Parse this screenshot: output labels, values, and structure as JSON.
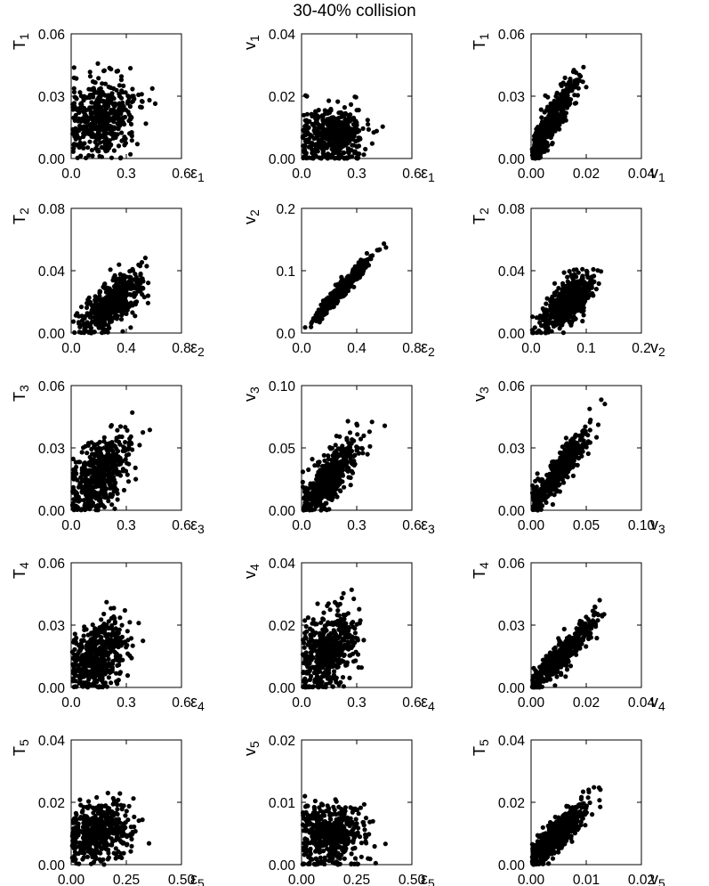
{
  "title": "30-40% collision",
  "chart_data": [
    {
      "type": "scatter",
      "xlabel": "ε1",
      "ylabel": "T1",
      "xlim": [
        0,
        0.6
      ],
      "ylim": [
        0,
        0.06
      ],
      "xticks": [
        0.0,
        0.3,
        0.6
      ],
      "xtick_labels": [
        "0.0",
        "0.3",
        "0.6"
      ],
      "yticks": [
        0.0,
        0.03,
        0.06
      ],
      "ytick_labels": [
        "0.00",
        "0.03",
        "0.06"
      ],
      "n_points": 500,
      "x_center": 0.17,
      "x_spread": 0.09,
      "slope": 0.01,
      "y0": 0.018,
      "y_noise": 0.0095,
      "seed": 11
    },
    {
      "type": "scatter",
      "xlabel": "ε1",
      "ylabel": "v1",
      "xlim": [
        0,
        0.6
      ],
      "ylim": [
        0,
        0.04
      ],
      "xticks": [
        0.0,
        0.3,
        0.6
      ],
      "xtick_labels": [
        "0.0",
        "0.3",
        "0.6"
      ],
      "yticks": [
        0.0,
        0.02,
        0.04
      ],
      "ytick_labels": [
        "0.00",
        "0.02",
        "0.04"
      ],
      "n_points": 500,
      "x_center": 0.17,
      "x_spread": 0.09,
      "slope": 0.0,
      "y0": 0.0075,
      "y_noise": 0.0045,
      "seed": 12
    },
    {
      "type": "scatter",
      "xlabel": "v1",
      "ylabel": "T1",
      "xlim": [
        0,
        0.04
      ],
      "ylim": [
        0,
        0.06
      ],
      "xticks": [
        0.0,
        0.02,
        0.04
      ],
      "xtick_labels": [
        "0.00",
        "0.02",
        "0.04"
      ],
      "yticks": [
        0.0,
        0.03,
        0.06
      ],
      "ytick_labels": [
        "0.00",
        "0.03",
        "0.06"
      ],
      "n_points": 500,
      "x_center": 0.0075,
      "x_spread": 0.0045,
      "slope": 2.1,
      "y0": 0.002,
      "y_noise": 0.0045,
      "seed": 13
    },
    {
      "type": "scatter",
      "xlabel": "ε2",
      "ylabel": "T2",
      "xlim": [
        0,
        0.8
      ],
      "ylim": [
        0,
        0.08
      ],
      "xticks": [
        0.0,
        0.4,
        0.8
      ],
      "xtick_labels": [
        "0.0",
        "0.4",
        "0.8"
      ],
      "yticks": [
        0.0,
        0.04,
        0.08
      ],
      "ytick_labels": [
        "0.00",
        "0.04",
        "0.08"
      ],
      "n_points": 500,
      "x_center": 0.3,
      "x_spread": 0.1,
      "slope": 0.06,
      "y0": 0.002,
      "y_noise": 0.007,
      "seed": 21
    },
    {
      "type": "scatter",
      "xlabel": "ε2",
      "ylabel": "v2",
      "xlim": [
        0,
        0.8
      ],
      "ylim": [
        0,
        0.2
      ],
      "xticks": [
        0.0,
        0.4,
        0.8
      ],
      "xtick_labels": [
        "0.0",
        "0.4",
        "0.8"
      ],
      "yticks": [
        0.0,
        0.1,
        0.2
      ],
      "ytick_labels": [
        "0.0",
        "0.1",
        "0.2"
      ],
      "n_points": 500,
      "x_center": 0.3,
      "x_spread": 0.1,
      "slope": 0.24,
      "y0": 0.0,
      "y_noise": 0.006,
      "seed": 22
    },
    {
      "type": "scatter",
      "xlabel": "v2",
      "ylabel": "T2",
      "xlim": [
        0,
        0.2
      ],
      "ylim": [
        0,
        0.08
      ],
      "xticks": [
        0.0,
        0.1,
        0.2
      ],
      "xtick_labels": [
        "0.0",
        "0.1",
        "0.2"
      ],
      "yticks": [
        0.0,
        0.04,
        0.08
      ],
      "ytick_labels": [
        "0.00",
        "0.04",
        "0.08"
      ],
      "n_points": 500,
      "x_center": 0.065,
      "x_spread": 0.025,
      "slope": 0.27,
      "y0": 0.002,
      "y_noise": 0.007,
      "seed": 23
    },
    {
      "type": "scatter",
      "xlabel": "ε3",
      "ylabel": "T3",
      "xlim": [
        0,
        0.6
      ],
      "ylim": [
        0,
        0.06
      ],
      "xticks": [
        0.0,
        0.3,
        0.6
      ],
      "xtick_labels": [
        "0.0",
        "0.3",
        "0.6"
      ],
      "yticks": [
        0.0,
        0.03,
        0.06
      ],
      "ytick_labels": [
        "0.00",
        "0.03",
        "0.06"
      ],
      "n_points": 500,
      "x_center": 0.15,
      "x_spread": 0.08,
      "slope": 0.065,
      "y0": 0.007,
      "y_noise": 0.008,
      "seed": 31
    },
    {
      "type": "scatter",
      "xlabel": "ε3",
      "ylabel": "v3",
      "xlim": [
        0,
        0.6
      ],
      "ylim": [
        0,
        0.1
      ],
      "xticks": [
        0.0,
        0.3,
        0.6
      ],
      "xtick_labels": [
        "0.0",
        "0.3",
        "0.6"
      ],
      "yticks": [
        0.0,
        0.05,
        0.1
      ],
      "ytick_labels": [
        "0.00",
        "0.05",
        "0.10"
      ],
      "n_points": 500,
      "x_center": 0.15,
      "x_spread": 0.08,
      "slope": 0.15,
      "y0": 0.003,
      "y_noise": 0.01,
      "seed": 32
    },
    {
      "type": "scatter",
      "xlabel": "v3",
      "ylabel": "v3",
      "xlim": [
        0,
        0.1
      ],
      "ylim": [
        0,
        0.06
      ],
      "xticks": [
        0.0,
        0.05,
        0.1
      ],
      "xtick_labels": [
        "0.00",
        "0.05",
        "0.10"
      ],
      "yticks": [
        0.0,
        0.03,
        0.06
      ],
      "ytick_labels": [
        "0.00",
        "0.03",
        "0.06"
      ],
      "n_points": 500,
      "x_center": 0.026,
      "x_spread": 0.013,
      "slope": 0.66,
      "y0": 0.002,
      "y_noise": 0.004,
      "seed": 33
    },
    {
      "type": "scatter",
      "xlabel": "ε4",
      "ylabel": "T4",
      "xlim": [
        0,
        0.6
      ],
      "ylim": [
        0,
        0.06
      ],
      "xticks": [
        0.0,
        0.3,
        0.6
      ],
      "xtick_labels": [
        "0.0",
        "0.3",
        "0.6"
      ],
      "yticks": [
        0.0,
        0.03,
        0.06
      ],
      "ytick_labels": [
        "0.00",
        "0.03",
        "0.06"
      ],
      "n_points": 500,
      "x_center": 0.14,
      "x_spread": 0.075,
      "slope": 0.035,
      "y0": 0.01,
      "y_noise": 0.008,
      "seed": 41
    },
    {
      "type": "scatter",
      "xlabel": "ε4",
      "ylabel": "v4",
      "xlim": [
        0,
        0.6
      ],
      "ylim": [
        0,
        0.04
      ],
      "xticks": [
        0.0,
        0.3,
        0.6
      ],
      "xtick_labels": [
        "0.0",
        "0.3",
        "0.6"
      ],
      "yticks": [
        0.0,
        0.02,
        0.04
      ],
      "ytick_labels": [
        "0.00",
        "0.02",
        "0.04"
      ],
      "n_points": 500,
      "x_center": 0.14,
      "x_spread": 0.075,
      "slope": 0.03,
      "y0": 0.007,
      "y_noise": 0.006,
      "seed": 42
    },
    {
      "type": "scatter",
      "xlabel": "v4",
      "ylabel": "T4",
      "xlim": [
        0,
        0.04
      ],
      "ylim": [
        0,
        0.06
      ],
      "xticks": [
        0.0,
        0.02,
        0.04
      ],
      "xtick_labels": [
        "0.00",
        "0.02",
        "0.04"
      ],
      "yticks": [
        0.0,
        0.03,
        0.06
      ],
      "ytick_labels": [
        "0.00",
        "0.03",
        "0.06"
      ],
      "n_points": 500,
      "x_center": 0.011,
      "x_spread": 0.006,
      "slope": 1.3,
      "y0": 0.001,
      "y_noise": 0.0035,
      "seed": 43
    },
    {
      "type": "scatter",
      "xlabel": "ε5",
      "ylabel": "T5",
      "xlim": [
        0,
        0.5
      ],
      "ylim": [
        0,
        0.04
      ],
      "xticks": [
        0.0,
        0.25,
        0.5
      ],
      "xtick_labels": [
        "0.00",
        "0.25",
        "0.50"
      ],
      "yticks": [
        0.0,
        0.02,
        0.04
      ],
      "ytick_labels": [
        "0.00",
        "0.02",
        "0.04"
      ],
      "n_points": 500,
      "x_center": 0.13,
      "x_spread": 0.075,
      "slope": 0.01,
      "y0": 0.009,
      "y_noise": 0.0045,
      "seed": 51
    },
    {
      "type": "scatter",
      "xlabel": "ε5",
      "ylabel": "v5",
      "xlim": [
        0,
        0.5
      ],
      "ylim": [
        0,
        0.02
      ],
      "xticks": [
        0.0,
        0.25,
        0.5
      ],
      "xtick_labels": [
        "0.00",
        "0.25",
        "0.50"
      ],
      "yticks": [
        0.0,
        0.01,
        0.02
      ],
      "ytick_labels": [
        "0.00",
        "0.01",
        "0.02"
      ],
      "n_points": 500,
      "x_center": 0.13,
      "x_spread": 0.075,
      "slope": 0.0,
      "y0": 0.0045,
      "y_noise": 0.0025,
      "seed": 52
    },
    {
      "type": "scatter",
      "xlabel": "v5",
      "ylabel": "T5",
      "xlim": [
        0,
        0.02
      ],
      "ylim": [
        0,
        0.04
      ],
      "xticks": [
        0.0,
        0.01,
        0.02
      ],
      "xtick_labels": [
        "0.00",
        "0.01",
        "0.02"
      ],
      "yticks": [
        0.0,
        0.02,
        0.04
      ],
      "ytick_labels": [
        "0.00",
        "0.02",
        "0.04"
      ],
      "n_points": 500,
      "x_center": 0.0045,
      "x_spread": 0.0027,
      "slope": 1.6,
      "y0": 0.002,
      "y_noise": 0.0025,
      "seed": 53
    }
  ]
}
